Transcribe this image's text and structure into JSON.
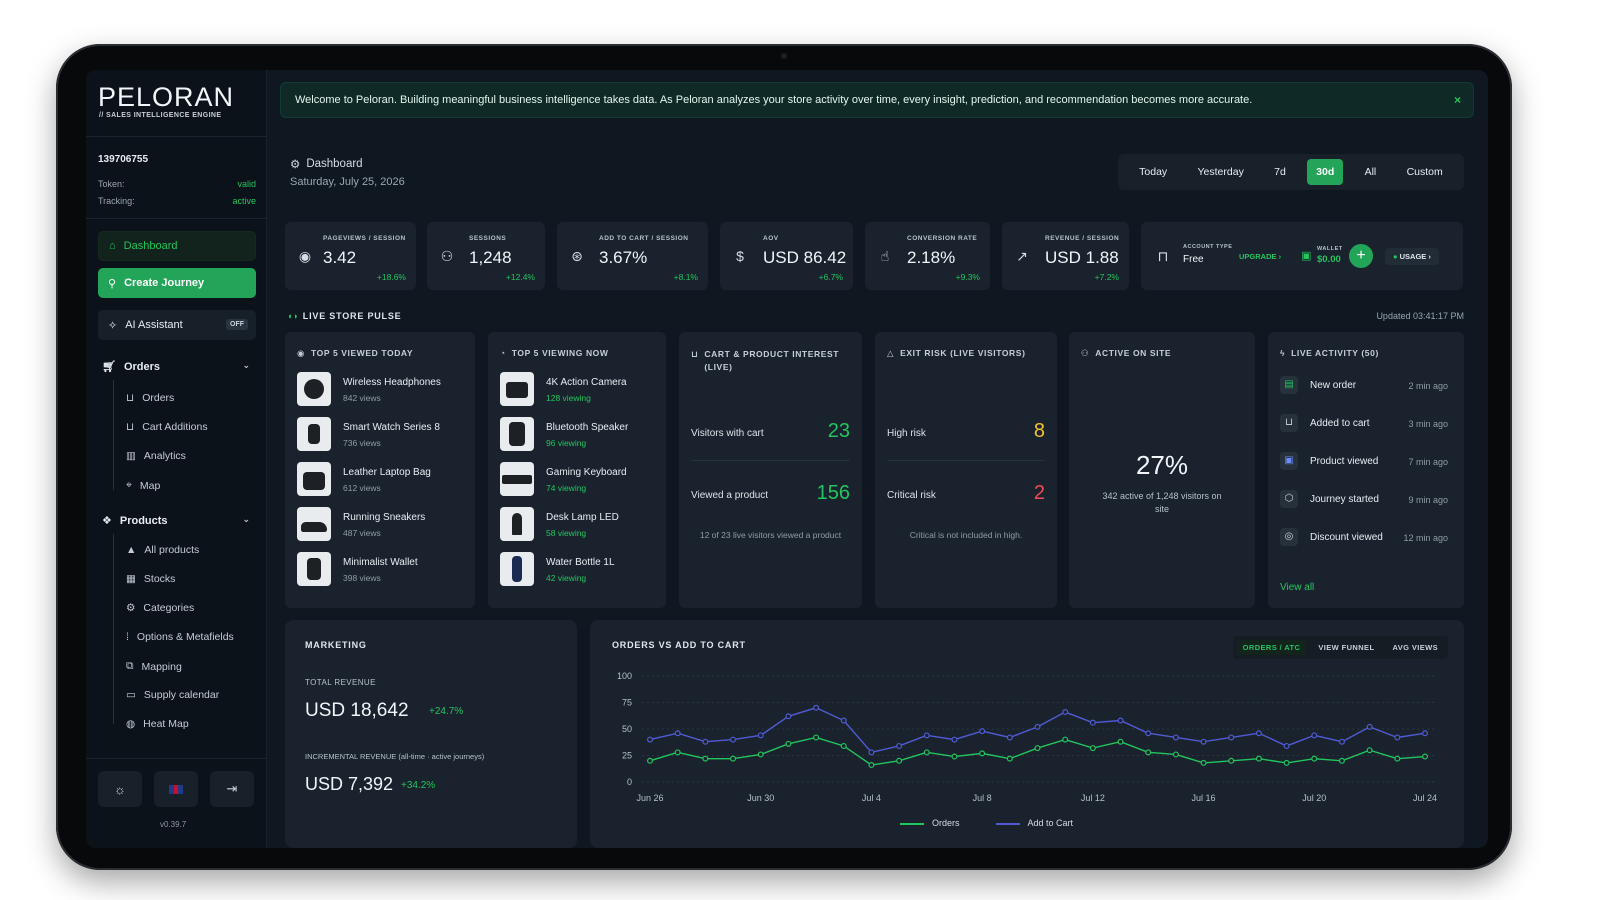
{
  "brand": {
    "name": "PELORAN",
    "tagline": "// SALES INTELLIGENCE ENGINE",
    "version": "v0.39.7"
  },
  "account": {
    "id": "139706755",
    "token_label": "Token:",
    "token_value": "valid",
    "tracking_label": "Tracking:",
    "tracking_value": "active"
  },
  "nav": {
    "dashboard": "Dashboard",
    "create_journey": "Create Journey",
    "ai_assistant": "AI Assistant",
    "ai_state": "OFF",
    "orders_group": "Orders",
    "orders_items": [
      "Orders",
      "Cart Additions",
      "Analytics",
      "Map"
    ],
    "products_group": "Products",
    "products_items": [
      "All products",
      "Stocks",
      "Categories",
      "Options & Metafields",
      "Mapping",
      "Supply calendar",
      "Heat Map"
    ]
  },
  "banner": {
    "text": "Welcome to Peloran. Building meaningful business intelligence takes data. As Peloran analyzes your store activity over time, every insight, prediction, and recommendation becomes more accurate.",
    "close": "×"
  },
  "header": {
    "crumb": "Dashboard",
    "date": "Saturday, July 25, 2026"
  },
  "range": [
    "Today",
    "Yesterday",
    "7d",
    "30d",
    "All",
    "Custom"
  ],
  "range_selected": "30d",
  "kpis": [
    {
      "label": "PAGEVIEWS / SESSION",
      "value": "3.42",
      "delta": "+18.6%",
      "icon": "eye-icon"
    },
    {
      "label": "SESSIONS",
      "value": "1,248",
      "delta": "+12.4%",
      "icon": "users-icon"
    },
    {
      "label": "ADD TO CART / SESSION",
      "value": "3.67%",
      "delta": "+8.1%",
      "icon": "cart-icon"
    },
    {
      "label": "AOV",
      "value": "USD 86.42",
      "delta": "+6.7%",
      "icon": "dollar-icon"
    },
    {
      "label": "CONVERSION RATE",
      "value": "2.18%",
      "delta": "+9.3%",
      "icon": "cursor-icon"
    },
    {
      "label": "REVENUE / SESSION",
      "value": "USD 1.88",
      "delta": "+7.2%",
      "icon": "trend-icon"
    }
  ],
  "account_panel": {
    "type_label": "ACCOUNT TYPE",
    "type_value": "Free",
    "upgrade": "UPGRADE ›",
    "wallet_label": "WALLET",
    "wallet_value": "$0.00",
    "usage": "USAGE ›"
  },
  "pulse": {
    "title": "LIVE STORE PULSE",
    "updated": "Updated 03:41:17 PM"
  },
  "top_viewed": {
    "title": "TOP 5 VIEWED TODAY",
    "items": [
      {
        "name": "Wireless Headphones",
        "stat": "842 views"
      },
      {
        "name": "Smart Watch Series 8",
        "stat": "736 views"
      },
      {
        "name": "Leather Laptop Bag",
        "stat": "612 views"
      },
      {
        "name": "Running Sneakers",
        "stat": "487 views"
      },
      {
        "name": "Minimalist Wallet",
        "stat": "398 views"
      }
    ]
  },
  "top_viewing": {
    "title": "TOP 5 VIEWING NOW",
    "items": [
      {
        "name": "4K Action Camera",
        "stat": "128 viewing"
      },
      {
        "name": "Bluetooth Speaker",
        "stat": "96 viewing"
      },
      {
        "name": "Gaming Keyboard",
        "stat": "74 viewing"
      },
      {
        "name": "Desk Lamp LED",
        "stat": "58 viewing"
      },
      {
        "name": "Water Bottle 1L",
        "stat": "42 viewing"
      }
    ]
  },
  "cart_interest": {
    "title": "CART & PRODUCT INTEREST (LIVE)",
    "row1_label": "Visitors with cart",
    "row1_value": "23",
    "row2_label": "Viewed a product",
    "row2_value": "156",
    "note": "12 of 23 live visitors viewed a product"
  },
  "exit_risk": {
    "title": "EXIT RISK (LIVE VISITORS)",
    "row1_label": "High risk",
    "row1_value": "8",
    "row2_label": "Critical risk",
    "row2_value": "2",
    "note": "Critical is not included in high."
  },
  "active": {
    "title": "ACTIVE ON SITE",
    "value": "27%",
    "note": "342 active of 1,248 visitors on site"
  },
  "activity": {
    "title": "LIVE ACTIVITY (50)",
    "items": [
      {
        "name": "New order",
        "time": "2 min ago"
      },
      {
        "name": "Added to cart",
        "time": "3 min ago"
      },
      {
        "name": "Product viewed",
        "time": "7 min ago"
      },
      {
        "name": "Journey started",
        "time": "9 min ago"
      },
      {
        "name": "Discount viewed",
        "time": "12 min ago"
      }
    ],
    "view_all": "View all"
  },
  "marketing": {
    "title": "MARKETING",
    "total_label": "TOTAL REVENUE",
    "total_value": "USD 18,642",
    "total_delta": "+24.7%",
    "inc_label": "INCREMENTAL REVENUE (all-time · active journeys)",
    "inc_value": "USD 7,392",
    "inc_delta": "+34.2%"
  },
  "chart_tabs": [
    "ORDERS / ATC",
    "VIEW FUNNEL",
    "AVG VIEWS"
  ],
  "colors": {
    "accent": "#22c55e",
    "orders": "#22c55e",
    "add_to_cart": "#4f5bd5",
    "warning": "#f2c230",
    "danger": "#f04a5a"
  },
  "chart_data": {
    "type": "line",
    "title": "ORDERS VS ADD TO CART",
    "x": [
      "Jun 26",
      "Jun 27",
      "Jun 28",
      "Jun 29",
      "Jun 30",
      "Jul 1",
      "Jul 2",
      "Jul 3",
      "Jul 4",
      "Jul 5",
      "Jul 6",
      "Jul 7",
      "Jul 8",
      "Jul 9",
      "Jul 10",
      "Jul 11",
      "Jul 12",
      "Jul 13",
      "Jul 14",
      "Jul 15",
      "Jul 16",
      "Jul 17",
      "Jul 18",
      "Jul 19",
      "Jul 20",
      "Jul 21",
      "Jul 22",
      "Jul 23",
      "Jul 24"
    ],
    "xticks": [
      "Jun 26",
      "Jun 30",
      "Jul 4",
      "Jul 8",
      "Jul 12",
      "Jul 16",
      "Jul 20",
      "Jul 24"
    ],
    "yticks": [
      0,
      25,
      50,
      75,
      100
    ],
    "ylim": [
      0,
      100
    ],
    "series": [
      {
        "name": "Orders",
        "color": "#22c55e",
        "values": [
          20,
          28,
          22,
          22,
          26,
          36,
          42,
          34,
          16,
          20,
          28,
          24,
          27,
          22,
          32,
          40,
          32,
          38,
          28,
          26,
          18,
          20,
          22,
          18,
          22,
          20,
          30,
          22,
          24
        ]
      },
      {
        "name": "Add to Cart",
        "color": "#4f5bd5",
        "values": [
          40,
          46,
          38,
          40,
          44,
          62,
          70,
          58,
          28,
          34,
          44,
          40,
          48,
          42,
          52,
          66,
          56,
          58,
          46,
          42,
          38,
          42,
          46,
          34,
          44,
          38,
          52,
          42,
          46
        ]
      }
    ]
  }
}
